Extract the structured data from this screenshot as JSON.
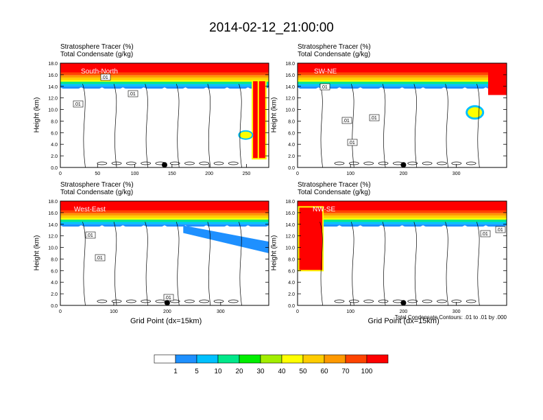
{
  "figure_title": "2014-02-12_21:00:00",
  "chart_data": [
    {
      "type": "heatmap",
      "panel": "top-left",
      "region_label": "South-North",
      "title_line1": "Stratosphere Tracer   (%)",
      "title_line2": "Total Condensate   (g/kg)",
      "ylabel": "Height (km)",
      "xlabel": "",
      "xlim": [
        0,
        280
      ],
      "xticks": [
        0,
        50,
        100,
        150,
        200,
        250
      ],
      "ylim": [
        0,
        18
      ],
      "yticks": [
        "0.0",
        "2.0",
        "4.0",
        "6.0",
        "8.0",
        "10.0",
        "12.0",
        "14.0",
        "16.0",
        "18.0"
      ],
      "marker_x": 140,
      "contour_labels": [
        ".01",
        ".01",
        ".01"
      ]
    },
    {
      "type": "heatmap",
      "panel": "top-right",
      "region_label": "SW-NE",
      "title_line1": "Stratosphere Tracer   (%)",
      "title_line2": "Total Condensate   (g/kg)",
      "ylabel": "Height (km)",
      "xlabel": "",
      "xlim": [
        0,
        395
      ],
      "xticks": [
        0,
        100,
        200,
        300
      ],
      "ylim": [
        0,
        18
      ],
      "yticks": [
        "0.0",
        "2.0",
        "4.0",
        "6.0",
        "8.0",
        "10.0",
        "12.0",
        "14.0",
        "16.0",
        "18.0"
      ],
      "marker_x": 200,
      "contour_labels": [
        ".01",
        ".01",
        ".01",
        ".01"
      ]
    },
    {
      "type": "heatmap",
      "panel": "bottom-left",
      "region_label": "West-East",
      "title_line1": "Stratosphere Tracer   (%)",
      "title_line2": "Total Condensate   (g/kg)",
      "ylabel": "Height (km)",
      "xlabel": "Grid Point (dx=15km)",
      "xlim": [
        0,
        390
      ],
      "xticks": [
        0,
        100,
        200,
        300
      ],
      "ylim": [
        0,
        18
      ],
      "yticks": [
        "0.0",
        "2.0",
        "4.0",
        "6.0",
        "8.0",
        "10.0",
        "12.0",
        "14.0",
        "16.0",
        "18.0"
      ],
      "marker_x": 200,
      "contour_labels": [
        ".01",
        ".01",
        ".01"
      ]
    },
    {
      "type": "heatmap",
      "panel": "bottom-right",
      "region_label": "NW-SE",
      "title_line1": "Stratosphere Tracer   (%)",
      "title_line2": "Total Condensate   (g/kg)",
      "ylabel": "Height (km)",
      "xlabel": "Grid Point (dx=15km)",
      "xlim": [
        0,
        395
      ],
      "xticks": [
        0,
        100,
        200,
        300
      ],
      "ylim": [
        0,
        18
      ],
      "yticks": [
        "0.0",
        "2.0",
        "4.0",
        "6.0",
        "8.0",
        "10.0",
        "12.0",
        "14.0",
        "16.0",
        "18.0"
      ],
      "marker_x": 200,
      "contour_labels": [
        ".01",
        ".01"
      ],
      "footnote": "Total Condensate Contours: .01 to .01 by .000"
    }
  ],
  "colorbar": {
    "labels": [
      "1",
      "5",
      "10",
      "20",
      "30",
      "40",
      "50",
      "60",
      "70",
      "100"
    ],
    "colors": [
      "#ffffff",
      "#1e90ff",
      "#00c0ff",
      "#00e88a",
      "#00ee00",
      "#a2ee00",
      "#ffff00",
      "#ffcc00",
      "#ff9900",
      "#ff4400",
      "#ff0000"
    ]
  }
}
